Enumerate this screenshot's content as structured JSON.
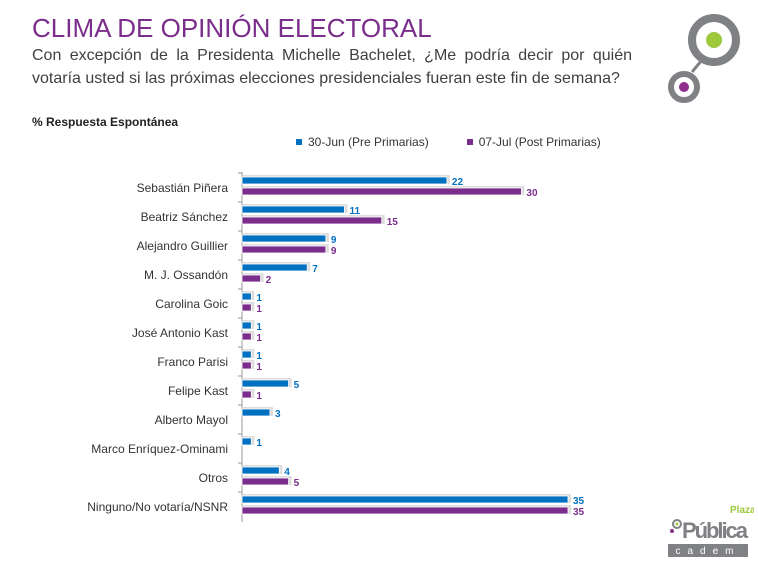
{
  "title": "CLIMA DE OPINIÓN ELECTORAL",
  "subtitle": "Con excepción de la Presidenta Michelle Bachelet, ¿Me podría decir por quién votaría usted si las próximas elecciones presidenciales fueran este fin de semana?",
  "note": "% Respuesta Espontánea",
  "brand": {
    "top": "Plaza",
    "main": "Pública",
    "bottom": "cadem"
  },
  "chart_data": {
    "type": "bar",
    "orientation": "horizontal",
    "categories": [
      "Sebastián Piñera",
      "Beatriz Sánchez",
      "Alejandro  Guillier",
      "M. J. Ossandón",
      "Carolina Goic",
      "José Antonio Kast",
      "Franco Parisi",
      "Felipe Kast",
      "Alberto Mayol",
      "Marco Enríquez-Ominami",
      "Otros",
      "Ninguno/No votaría/NSNR"
    ],
    "series": [
      {
        "name": "30-Jun (Pre Primarias)",
        "color": "#0070c0",
        "values": [
          22,
          11,
          9,
          7,
          1,
          1,
          1,
          5,
          3,
          1,
          4,
          35
        ]
      },
      {
        "name": "07-Jul (Post Primarias)",
        "color": "#7b2d8b",
        "values": [
          30,
          15,
          9,
          2,
          1,
          1,
          1,
          1,
          null,
          null,
          5,
          35
        ]
      }
    ],
    "xlim": [
      0,
      35
    ],
    "legend": "top",
    "grid": false
  }
}
